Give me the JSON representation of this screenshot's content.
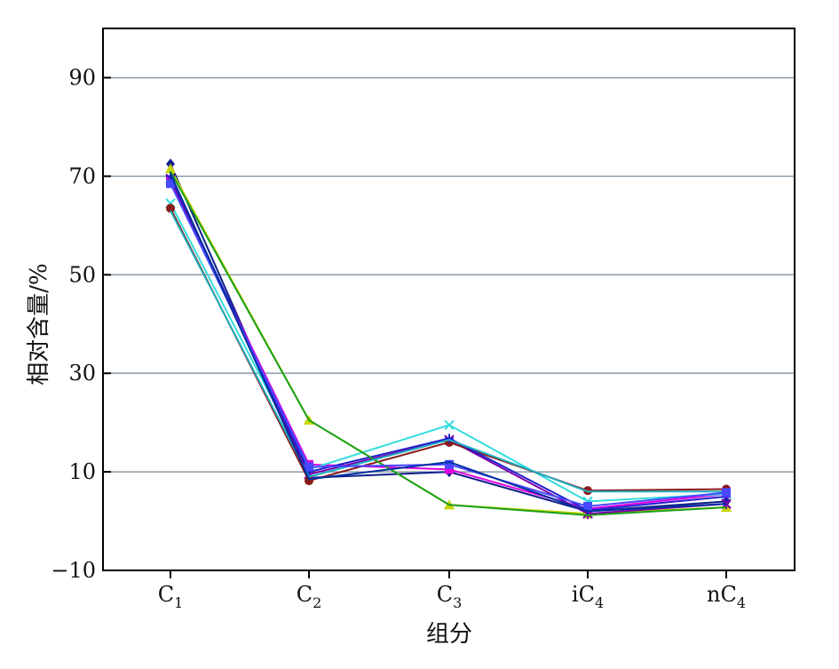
{
  "chart_data": {
    "type": "line",
    "xlabel": "组分",
    "ylabel": "相对含量/%",
    "categories": [
      {
        "base": "C",
        "sub": "1",
        "prefix": ""
      },
      {
        "base": "C",
        "sub": "2",
        "prefix": ""
      },
      {
        "base": "C",
        "sub": "3",
        "prefix": ""
      },
      {
        "base": "C",
        "sub": "4",
        "prefix": "i"
      },
      {
        "base": "C",
        "sub": "4",
        "prefix": "n"
      }
    ],
    "ylim": [
      -10,
      100
    ],
    "yticks": [
      -10,
      10,
      30,
      50,
      70,
      90
    ],
    "grid": "horizontal",
    "series": [
      {
        "color": "#0f1f8a",
        "marker": "diamond",
        "values": [
          72.5,
          8.8,
          10.0,
          2.0,
          4.0
        ]
      },
      {
        "color": "#e000e0",
        "marker": "square",
        "values": [
          69.0,
          11.5,
          10.5,
          2.5,
          5.5
        ]
      },
      {
        "color": "#c8d400",
        "marker": "triangle",
        "values": [
          71.5,
          20.5,
          3.3,
          1.5,
          2.8
        ]
      },
      {
        "color": "#33dddd",
        "marker": "x",
        "values": [
          64.5,
          10.5,
          19.5,
          4.0,
          5.5
        ]
      },
      {
        "color": "#7a00a8",
        "marker": "star",
        "values": [
          69.5,
          9.5,
          16.5,
          1.5,
          3.5
        ]
      },
      {
        "color": "#8b1a1a",
        "marker": "circle",
        "values": [
          63.5,
          8.2,
          16.0,
          6.2,
          6.5
        ]
      },
      {
        "color": "#2020d0",
        "marker": "plus",
        "values": [
          70.0,
          10.0,
          16.8,
          2.2,
          5.0
        ]
      },
      {
        "color": "#1aa01a",
        "marker": "none",
        "values": [
          71.0,
          20.5,
          3.3,
          1.2,
          2.8
        ]
      },
      {
        "color": "#20b0c0",
        "marker": "none",
        "values": [
          63.0,
          9.0,
          16.5,
          6.0,
          6.0
        ]
      },
      {
        "color": "#4848ff",
        "marker": "square",
        "values": [
          68.5,
          11.0,
          11.5,
          3.0,
          5.8
        ]
      },
      {
        "color": "#0030a0",
        "marker": "none",
        "values": [
          70.5,
          8.5,
          12.0,
          2.0,
          3.5
        ]
      }
    ]
  }
}
